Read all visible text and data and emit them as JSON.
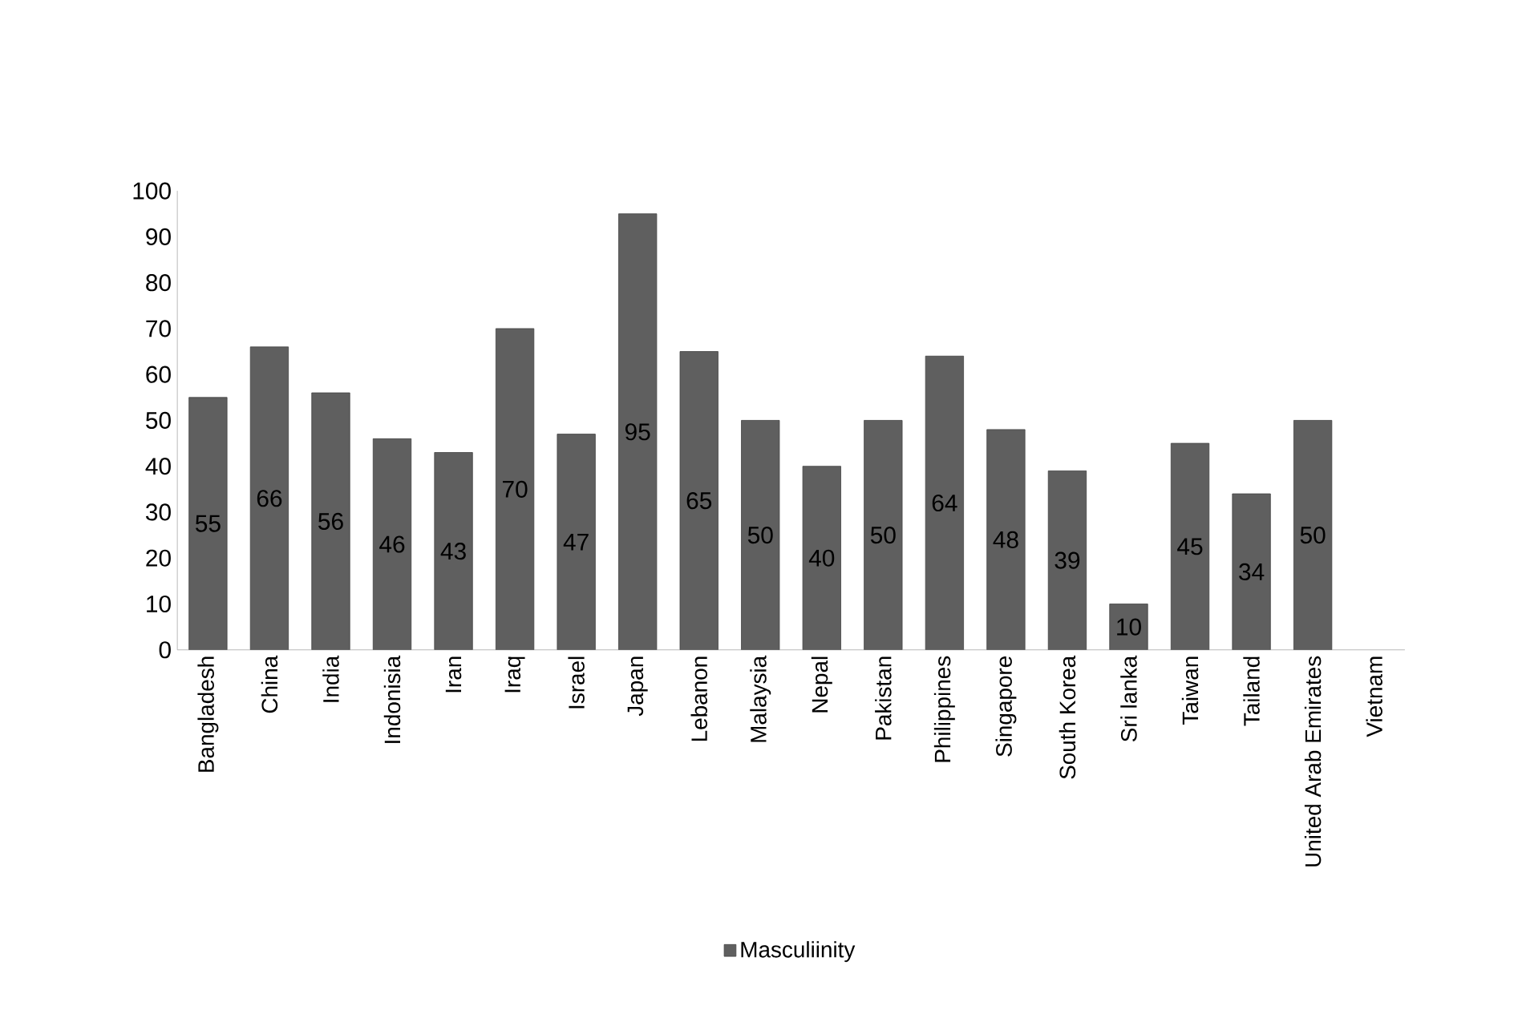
{
  "chart_data": {
    "type": "bar",
    "categories": [
      "Bangladesh",
      "China",
      "India",
      "Indonisia",
      "Iran",
      "Iraq",
      "Israel",
      "Japan",
      "Lebanon",
      "Malaysia",
      "Nepal",
      "Pakistan",
      "Philippines",
      "Singapore",
      "South Korea",
      "Sri lanka",
      "Taiwan",
      "Tailand",
      "United Arab Emirates",
      "Vietnam"
    ],
    "series": [
      {
        "name": "Masculiinity",
        "color": "#5f5f5f",
        "values": [
          55,
          66,
          56,
          46,
          43,
          70,
          47,
          95,
          65,
          50,
          40,
          50,
          64,
          48,
          39,
          10,
          45,
          34,
          50,
          null
        ]
      }
    ],
    "ylim": [
      0,
      100
    ],
    "yticks": [
      0,
      10,
      20,
      30,
      40,
      50,
      60,
      70,
      80,
      90,
      100
    ],
    "data_labels": true,
    "legend": "bottom",
    "grid": false
  }
}
